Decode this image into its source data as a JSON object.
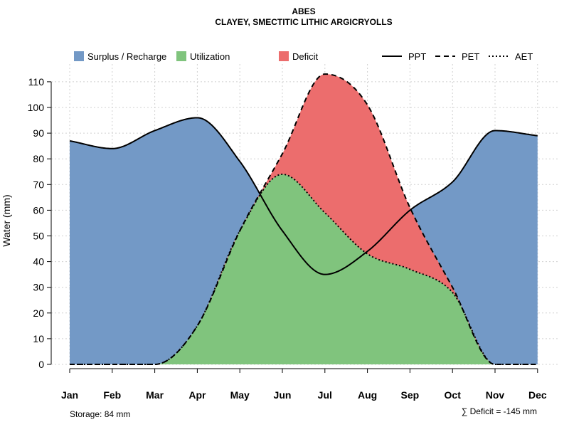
{
  "chart_data": {
    "type": "area",
    "title": "ABES",
    "subtitle": "CLAYEY, SMECTITIC LITHIC ARGICRYOLLS",
    "xlabel": "",
    "ylabel": "Water (mm)",
    "categories": [
      "Jan",
      "Feb",
      "Mar",
      "Apr",
      "May",
      "Jun",
      "Jul",
      "Aug",
      "Sep",
      "Oct",
      "Nov",
      "Dec"
    ],
    "ylim": [
      0,
      115
    ],
    "yticks": [
      0,
      10,
      20,
      30,
      40,
      50,
      60,
      70,
      80,
      90,
      100,
      110
    ],
    "grid": true,
    "legend_position": "top",
    "series": [
      {
        "name": "PPT",
        "values": [
          87,
          84,
          91,
          96,
          79,
          52,
          35,
          44,
          60,
          71,
          91,
          89
        ]
      },
      {
        "name": "PET",
        "values": [
          0,
          0,
          0,
          15,
          52,
          82,
          113,
          101,
          61,
          30,
          0,
          0
        ]
      },
      {
        "name": "AET",
        "values": [
          0,
          0,
          0,
          15,
          52,
          74,
          59,
          43,
          37,
          28,
          0,
          0
        ]
      }
    ],
    "areas": [
      {
        "name": "Surplus / Recharge",
        "color": "#7399c6"
      },
      {
        "name": "Utilization",
        "color": "#80c47d"
      },
      {
        "name": "Deficit",
        "color": "#ec6d6d"
      }
    ],
    "line_styles": {
      "PPT": "solid",
      "PET": "dashed",
      "AET": "dotted"
    },
    "footer_left": "Storage: 84 mm",
    "footer_right": "∑ Deficit = -145 mm"
  }
}
